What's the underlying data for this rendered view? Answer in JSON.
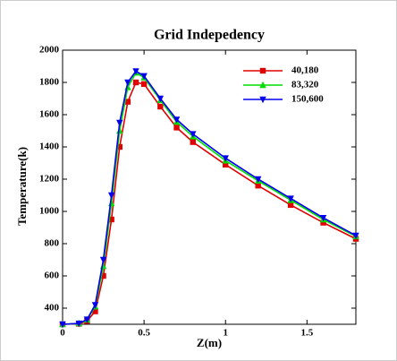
{
  "chart_data": {
    "type": "line",
    "title": "Grid Indepedency",
    "x_label": "Z(m)",
    "y_label": "Temperature(k)",
    "x": [
      0,
      0.1,
      0.15,
      0.2,
      0.25,
      0.3,
      0.35,
      0.4,
      0.45,
      0.5,
      0.6,
      0.7,
      0.8,
      1.0,
      1.2,
      1.4,
      1.6,
      1.8
    ],
    "series": [
      {
        "name": "40,180",
        "color": "#e00000",
        "marker": "square",
        "values": [
          300,
          303,
          320,
          380,
          600,
          950,
          1400,
          1680,
          1800,
          1790,
          1650,
          1520,
          1430,
          1290,
          1160,
          1040,
          930,
          830
        ]
      },
      {
        "name": "83,320",
        "color": "#00dd00",
        "marker": "triangle-up",
        "values": [
          300,
          305,
          328,
          410,
          660,
          1050,
          1500,
          1770,
          1860,
          1830,
          1690,
          1555,
          1465,
          1315,
          1190,
          1070,
          950,
          845
        ]
      },
      {
        "name": "150,600",
        "color": "#0000ee",
        "marker": "triangle-down",
        "values": [
          300,
          305,
          330,
          420,
          700,
          1100,
          1550,
          1800,
          1870,
          1840,
          1700,
          1570,
          1480,
          1330,
          1200,
          1080,
          960,
          850
        ]
      }
    ],
    "xlim": [
      0,
      1.8
    ],
    "xticks": [
      0,
      0.5,
      1,
      1.5
    ],
    "ylim": [
      300,
      2000
    ],
    "yticks": [
      400,
      600,
      800,
      1000,
      1200,
      1400,
      1600,
      1800,
      2000
    ],
    "legend": "upper right"
  }
}
